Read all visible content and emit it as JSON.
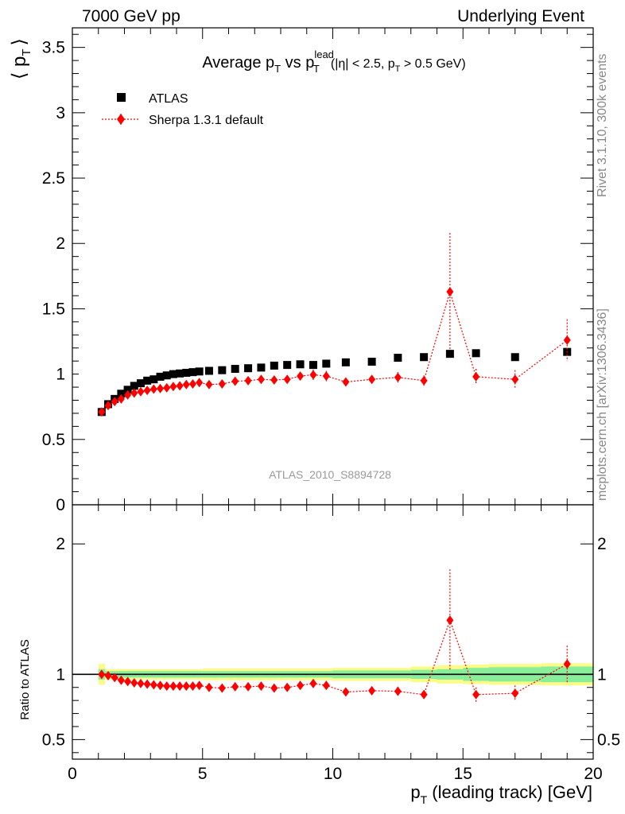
{
  "header": {
    "left": "7000 GeV pp",
    "right": "Underlying Event"
  },
  "side_labels": {
    "rivet": "Rivet 3.1.10,  300k events",
    "mcplots": "mcplots.cern.ch [arXiv:1306.3436]"
  },
  "chart_data": [
    {
      "type": "scatter",
      "panel": "main",
      "title_parts": {
        "prefix": "Average p",
        "t1": "T",
        "vs": " vs p",
        "lead": "lead",
        "t2": "T",
        "cuts_a": "(|η| < 2.5, p",
        "t3": "T",
        "cuts_b": " > 0.5 GeV)"
      },
      "ylabel_parts": {
        "open": "⟨ p",
        "sub": "T",
        "close": "⟩"
      },
      "xlabel_parts": {
        "main": "p",
        "sub": "T",
        "rest": " (leading track) [GeV]"
      },
      "watermark": "ATLAS_2010_S8894728",
      "xlim": [
        0,
        20
      ],
      "ylim": [
        0,
        3.65
      ],
      "y_ticks": [
        {
          "value": 0,
          "label": "0"
        },
        {
          "value": 0.5,
          "label": "0.5"
        },
        {
          "value": 1,
          "label": "1"
        },
        {
          "value": 1.5,
          "label": "1.5"
        },
        {
          "value": 2,
          "label": "2"
        },
        {
          "value": 2.5,
          "label": "2.5"
        },
        {
          "value": 3,
          "label": "3"
        },
        {
          "value": 3.5,
          "label": "3.5"
        }
      ],
      "legend_position": "top-left",
      "grid": false,
      "series": [
        {
          "name": "ATLAS",
          "marker": "square",
          "color": "#000000",
          "x": [
            1.125,
            1.375,
            1.625,
            1.875,
            2.125,
            2.375,
            2.625,
            2.875,
            3.125,
            3.375,
            3.625,
            3.875,
            4.125,
            4.375,
            4.625,
            4.875,
            5.25,
            5.75,
            6.25,
            6.75,
            7.25,
            7.75,
            8.25,
            8.75,
            9.25,
            9.75,
            10.5,
            11.5,
            12.5,
            13.5,
            14.5,
            15.5,
            17.0,
            19.0
          ],
          "y": [
            0.71,
            0.77,
            0.81,
            0.85,
            0.88,
            0.91,
            0.93,
            0.95,
            0.96,
            0.98,
            0.99,
            1.0,
            1.005,
            1.01,
            1.015,
            1.02,
            1.025,
            1.03,
            1.04,
            1.045,
            1.05,
            1.065,
            1.07,
            1.075,
            1.07,
            1.08,
            1.09,
            1.095,
            1.125,
            1.13,
            1.155,
            1.16,
            1.13,
            1.17
          ]
        },
        {
          "name": "Sherpa 1.3.1 default",
          "marker": "diamond",
          "color": "#ff0000",
          "x": [
            1.125,
            1.375,
            1.625,
            1.875,
            2.125,
            2.375,
            2.625,
            2.875,
            3.125,
            3.375,
            3.625,
            3.875,
            4.125,
            4.375,
            4.625,
            4.875,
            5.25,
            5.75,
            6.25,
            6.75,
            7.25,
            7.75,
            8.25,
            8.75,
            9.25,
            9.75,
            10.5,
            11.5,
            12.5,
            13.5,
            14.5,
            15.5,
            17.0,
            19.0
          ],
          "y": [
            0.71,
            0.76,
            0.79,
            0.81,
            0.84,
            0.855,
            0.865,
            0.875,
            0.885,
            0.89,
            0.895,
            0.905,
            0.91,
            0.92,
            0.925,
            0.935,
            0.92,
            0.925,
            0.945,
            0.95,
            0.96,
            0.955,
            0.96,
            0.985,
            0.995,
            0.985,
            0.94,
            0.96,
            0.975,
            0.95,
            1.63,
            0.98,
            0.96,
            1.26
          ],
          "y_err": [
            0.01,
            0.01,
            0.01,
            0.01,
            0.01,
            0.01,
            0.01,
            0.01,
            0.01,
            0.01,
            0.01,
            0.01,
            0.01,
            0.01,
            0.015,
            0.015,
            0.02,
            0.02,
            0.02,
            0.025,
            0.025,
            0.025,
            0.03,
            0.03,
            0.04,
            0.04,
            0.03,
            0.03,
            0.04,
            0.04,
            0.45,
            0.06,
            0.07,
            0.16
          ]
        }
      ]
    },
    {
      "type": "scatter",
      "panel": "ratio",
      "ylabel": "Ratio to ATLAS",
      "xlim": [
        0,
        20
      ],
      "ylim": [
        0.35,
        2.3
      ],
      "reference_line": 1.0,
      "x_ticks": [
        {
          "value": 0,
          "label": "0"
        },
        {
          "value": 5,
          "label": "5"
        },
        {
          "value": 10,
          "label": "10"
        },
        {
          "value": 15,
          "label": "15"
        },
        {
          "value": 20,
          "label": "20"
        }
      ],
      "y_ticks": [
        {
          "value": 0.5,
          "label": "0.5"
        },
        {
          "value": 1,
          "label": "1"
        },
        {
          "value": 2,
          "label": "2"
        }
      ],
      "bands": {
        "x_edges": [
          1.0,
          1.25,
          2.0,
          5.0,
          10.0,
          13.0,
          14.0,
          15.0,
          16.0,
          18.0,
          20.0
        ],
        "inner": [
          0.04,
          0.025,
          0.025,
          0.025,
          0.03,
          0.035,
          0.04,
          0.05,
          0.055,
          0.06
        ],
        "outer": [
          0.08,
          0.04,
          0.04,
          0.045,
          0.05,
          0.06,
          0.07,
          0.075,
          0.08,
          0.085
        ],
        "inner_color": "#88ee99",
        "outer_color": "#fbfb88"
      },
      "series": [
        {
          "name": "Sherpa 1.3.1 default",
          "marker": "diamond",
          "color": "#ff0000",
          "x": [
            1.125,
            1.375,
            1.625,
            1.875,
            2.125,
            2.375,
            2.625,
            2.875,
            3.125,
            3.375,
            3.625,
            3.875,
            4.125,
            4.375,
            4.625,
            4.875,
            5.25,
            5.75,
            6.25,
            6.75,
            7.25,
            7.75,
            8.25,
            8.75,
            9.25,
            9.75,
            10.5,
            11.5,
            12.5,
            13.5,
            14.5,
            15.5,
            17.0,
            19.0
          ],
          "y": [
            1.0,
            0.99,
            0.975,
            0.955,
            0.945,
            0.935,
            0.93,
            0.925,
            0.92,
            0.915,
            0.91,
            0.91,
            0.91,
            0.91,
            0.91,
            0.915,
            0.9,
            0.895,
            0.905,
            0.905,
            0.91,
            0.895,
            0.9,
            0.915,
            0.93,
            0.915,
            0.865,
            0.875,
            0.87,
            0.845,
            1.415,
            0.845,
            0.855,
            1.08
          ],
          "y_err": [
            0.015,
            0.012,
            0.01,
            0.01,
            0.01,
            0.01,
            0.01,
            0.01,
            0.01,
            0.01,
            0.01,
            0.01,
            0.01,
            0.01,
            0.012,
            0.012,
            0.018,
            0.018,
            0.018,
            0.02,
            0.022,
            0.022,
            0.025,
            0.025,
            0.035,
            0.035,
            0.03,
            0.03,
            0.035,
            0.035,
            0.39,
            0.055,
            0.06,
            0.14
          ]
        }
      ]
    }
  ]
}
